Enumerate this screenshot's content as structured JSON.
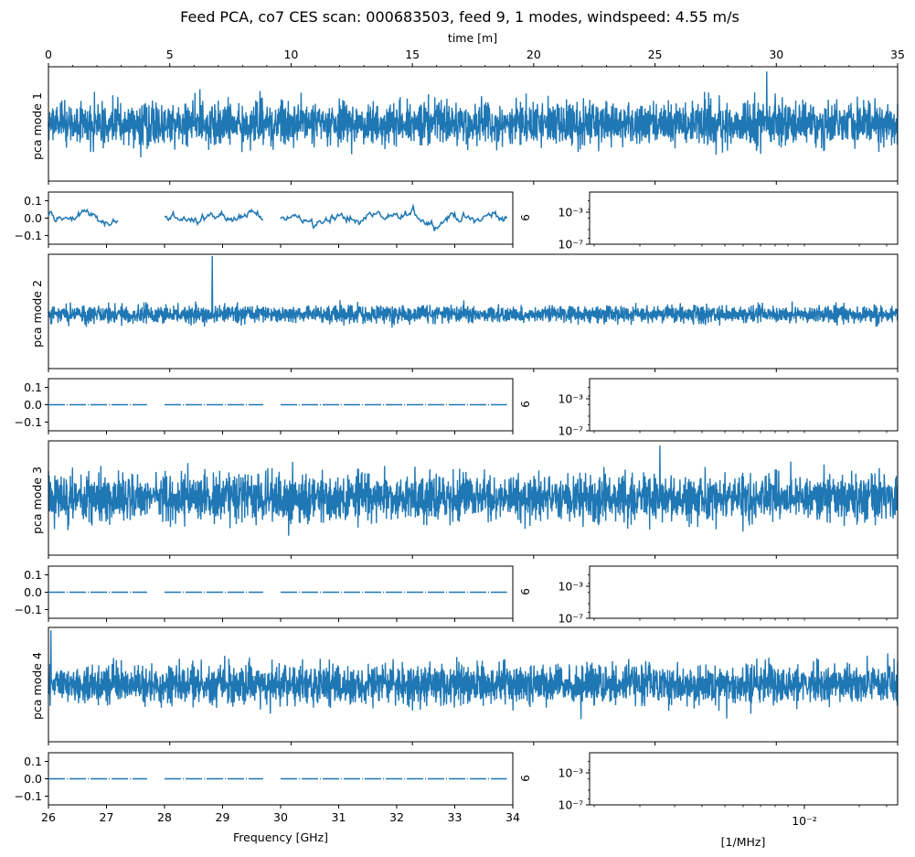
{
  "figure": {
    "title": "Feed PCA, co7 CES scan: 000683503, feed 9, 1 modes, windspeed: 4.55 m/s",
    "line_color": "#1f77b4"
  },
  "chart_data": [
    {
      "id": "mode-1-time",
      "type": "line",
      "xlabel": "time [m]",
      "xlim": [
        0,
        35
      ],
      "xticks": [
        "0",
        "5",
        "10",
        "15",
        "20",
        "25",
        "30",
        "35"
      ],
      "ylabel": "pca mode 1",
      "signal": {
        "noise_amplitude": 0.68,
        "spike_x": 29.6,
        "spike_value": 0.95
      }
    },
    {
      "id": "mode-1-freq",
      "type": "line",
      "xlim": [
        26,
        34
      ],
      "ylim": [
        -0.15,
        0.15
      ],
      "yticks": [
        "0.1",
        "0.0",
        "−0.1"
      ],
      "segments_ghz": [
        [
          26.0,
          27.2
        ],
        [
          28.0,
          29.7
        ],
        [
          30.0,
          33.9
        ]
      ],
      "side_label": "9"
    },
    {
      "id": "mode-1-psd",
      "type": "line",
      "yscale": "log",
      "yticks": [
        "10⁻³",
        "10⁻⁷"
      ]
    },
    {
      "id": "mode-2-time",
      "type": "line",
      "ylabel": "pca mode 2",
      "signal": {
        "noise_amplitude": 0.28,
        "spike_x": 6.75,
        "spike_value": 1.0,
        "baseline": -0.05
      }
    },
    {
      "id": "mode-2-freq",
      "type": "line",
      "xlim": [
        26,
        34
      ],
      "ylim": [
        -0.15,
        0.15
      ],
      "yticks": [
        "0.1",
        "0.0",
        "−0.1"
      ],
      "value": 0.0,
      "segments_ghz": [
        [
          26.0,
          27.7
        ],
        [
          28.0,
          29.7
        ],
        [
          30.0,
          33.9
        ]
      ],
      "side_label": "9"
    },
    {
      "id": "mode-2-psd",
      "type": "line",
      "yscale": "log",
      "yticks": [
        "10⁻³",
        "10⁻⁷"
      ]
    },
    {
      "id": "mode-3-time",
      "type": "line",
      "ylabel": "pca mode 3",
      "signal": {
        "noise_amplitude": 0.72,
        "spike_x": 25.2,
        "spike_value": 0.95
      }
    },
    {
      "id": "mode-3-freq",
      "type": "line",
      "xlim": [
        26,
        34
      ],
      "ylim": [
        -0.15,
        0.15
      ],
      "yticks": [
        "0.1",
        "0.0",
        "−0.1"
      ],
      "value": 0.0,
      "segments_ghz": [
        [
          26.0,
          27.7
        ],
        [
          28.0,
          29.7
        ],
        [
          30.0,
          33.9
        ]
      ],
      "side_label": "9"
    },
    {
      "id": "mode-3-psd",
      "type": "line",
      "yscale": "log",
      "yticks": [
        "10⁻³",
        "10⁻⁷"
      ]
    },
    {
      "id": "mode-4-time",
      "type": "line",
      "ylabel": "pca mode 4",
      "signal": {
        "noise_amplitude": 0.62,
        "spike_x": 0.1,
        "spike_value": 0.98
      }
    },
    {
      "id": "mode-4-freq",
      "type": "line",
      "xlabel": "Frequency [GHz]",
      "xlim": [
        26,
        34
      ],
      "ylim": [
        -0.15,
        0.15
      ],
      "xticks": [
        "26",
        "27",
        "28",
        "29",
        "30",
        "31",
        "32",
        "33",
        "34"
      ],
      "yticks": [
        "0.0",
        "−0.1"
      ],
      "yticks_full": [
        "0.1",
        "0.0",
        "−0.1"
      ],
      "value": 0.0,
      "segments_ghz": [
        [
          26.0,
          27.7
        ],
        [
          28.0,
          29.7
        ],
        [
          30.0,
          33.9
        ]
      ],
      "side_label": "9"
    },
    {
      "id": "mode-4-psd",
      "type": "line",
      "yscale": "log",
      "xscale": "log",
      "xlabel": "[1/MHz]",
      "xticks": [
        "10⁻²"
      ],
      "yticks": [
        "10⁻³",
        "10⁻⁷"
      ]
    }
  ]
}
